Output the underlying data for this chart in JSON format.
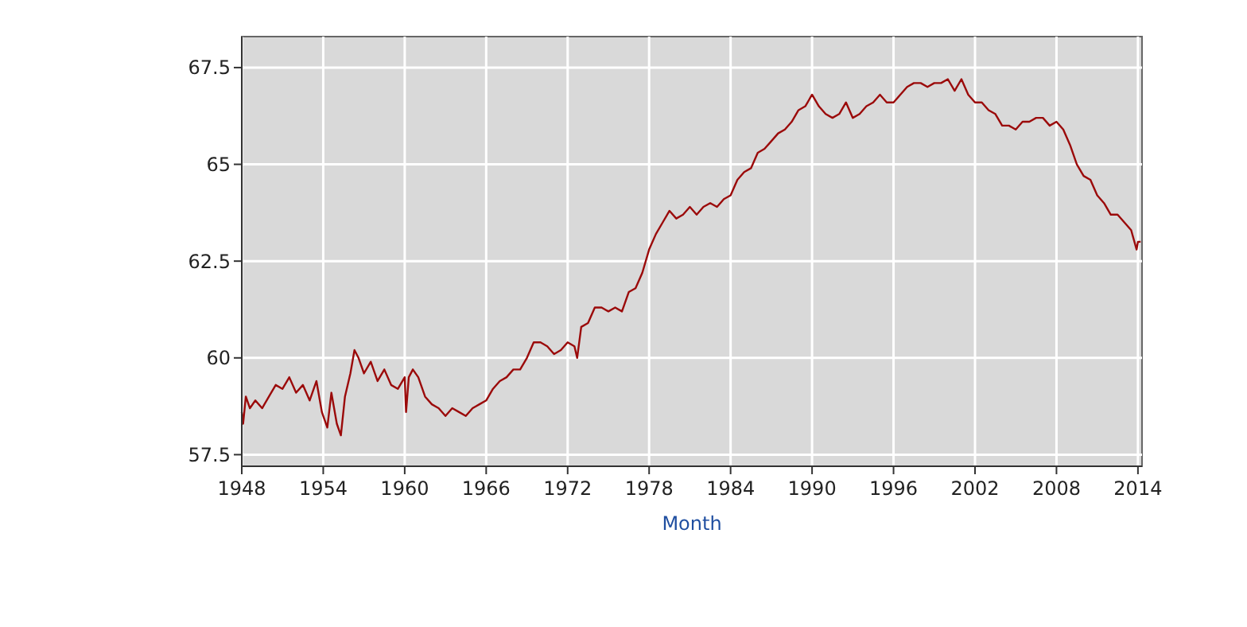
{
  "chart_data": {
    "type": "line",
    "xlabel": "Month",
    "xlim": [
      1948,
      2014.3
    ],
    "xticks": [
      1948,
      1954,
      1960,
      1966,
      1972,
      1978,
      1984,
      1990,
      1996,
      2002,
      2008,
      2014
    ],
    "ylim": [
      57.2,
      68.3
    ],
    "yticks": [
      57.5,
      60,
      62.5,
      65,
      67.5
    ],
    "grid": true,
    "line_style": "solid",
    "series": [
      {
        "color": "#9b0a0a",
        "x": [
          1948.0,
          1948.1,
          1948.3,
          1948.6,
          1949.0,
          1949.5,
          1950.0,
          1950.5,
          1951.0,
          1951.5,
          1952.0,
          1952.5,
          1953.0,
          1953.5,
          1953.9,
          1954.3,
          1954.6,
          1955.0,
          1955.3,
          1955.6,
          1956.0,
          1956.3,
          1956.6,
          1957.0,
          1957.5,
          1958.0,
          1958.5,
          1959.0,
          1959.5,
          1960.0,
          1960.1,
          1960.3,
          1960.6,
          1961.0,
          1961.5,
          1962.0,
          1962.5,
          1963.0,
          1963.5,
          1964.0,
          1964.5,
          1965.0,
          1965.5,
          1966.0,
          1966.5,
          1967.0,
          1967.5,
          1968.0,
          1968.5,
          1969.0,
          1969.5,
          1970.0,
          1970.5,
          1971.0,
          1971.5,
          1972.0,
          1972.5,
          1972.7,
          1973.0,
          1973.5,
          1974.0,
          1974.5,
          1975.0,
          1975.5,
          1976.0,
          1976.5,
          1977.0,
          1977.5,
          1978.0,
          1978.5,
          1979.0,
          1979.5,
          1980.0,
          1980.5,
          1981.0,
          1981.5,
          1982.0,
          1982.5,
          1983.0,
          1983.5,
          1984.0,
          1984.5,
          1985.0,
          1985.5,
          1986.0,
          1986.5,
          1987.0,
          1987.5,
          1988.0,
          1988.5,
          1989.0,
          1989.5,
          1990.0,
          1990.5,
          1991.0,
          1991.5,
          1992.0,
          1992.5,
          1993.0,
          1993.5,
          1994.0,
          1994.5,
          1995.0,
          1995.5,
          1996.0,
          1996.5,
          1997.0,
          1997.5,
          1998.0,
          1998.5,
          1999.0,
          1999.5,
          2000.0,
          2000.5,
          2001.0,
          2001.5,
          2002.0,
          2002.5,
          2003.0,
          2003.5,
          2004.0,
          2004.5,
          2005.0,
          2005.5,
          2006.0,
          2006.5,
          2007.0,
          2007.5,
          2008.0,
          2008.5,
          2009.0,
          2009.5,
          2010.0,
          2010.5,
          2011.0,
          2011.5,
          2012.0,
          2012.5,
          2013.0,
          2013.5,
          2013.9,
          2014.0,
          2014.2
        ],
        "values": [
          58.6,
          58.3,
          59.0,
          58.7,
          58.9,
          58.7,
          59.0,
          59.3,
          59.2,
          59.5,
          59.1,
          59.3,
          58.9,
          59.4,
          58.6,
          58.2,
          59.1,
          58.3,
          58.0,
          59.0,
          59.6,
          60.2,
          60.0,
          59.6,
          59.9,
          59.4,
          59.7,
          59.3,
          59.2,
          59.5,
          58.6,
          59.5,
          59.7,
          59.5,
          59.0,
          58.8,
          58.7,
          58.5,
          58.7,
          58.6,
          58.5,
          58.7,
          58.8,
          58.9,
          59.2,
          59.4,
          59.5,
          59.7,
          59.7,
          60.0,
          60.4,
          60.4,
          60.3,
          60.1,
          60.2,
          60.4,
          60.3,
          60.0,
          60.8,
          60.9,
          61.3,
          61.3,
          61.2,
          61.3,
          61.2,
          61.7,
          61.8,
          62.2,
          62.8,
          63.2,
          63.5,
          63.8,
          63.6,
          63.7,
          63.9,
          63.7,
          63.9,
          64.0,
          63.9,
          64.1,
          64.2,
          64.6,
          64.8,
          64.9,
          65.3,
          65.4,
          65.6,
          65.8,
          65.9,
          66.1,
          66.4,
          66.5,
          66.8,
          66.5,
          66.3,
          66.2,
          66.3,
          66.6,
          66.2,
          66.3,
          66.5,
          66.6,
          66.8,
          66.6,
          66.6,
          66.8,
          67.0,
          67.1,
          67.1,
          67.0,
          67.1,
          67.1,
          67.2,
          66.9,
          67.2,
          66.8,
          66.6,
          66.6,
          66.4,
          66.3,
          66.0,
          66.0,
          65.9,
          66.1,
          66.1,
          66.2,
          66.2,
          66.0,
          66.1,
          65.9,
          65.5,
          65.0,
          64.7,
          64.6,
          64.2,
          64.0,
          63.7,
          63.7,
          63.5,
          63.3,
          62.8,
          63.0,
          63.0
        ]
      }
    ]
  }
}
